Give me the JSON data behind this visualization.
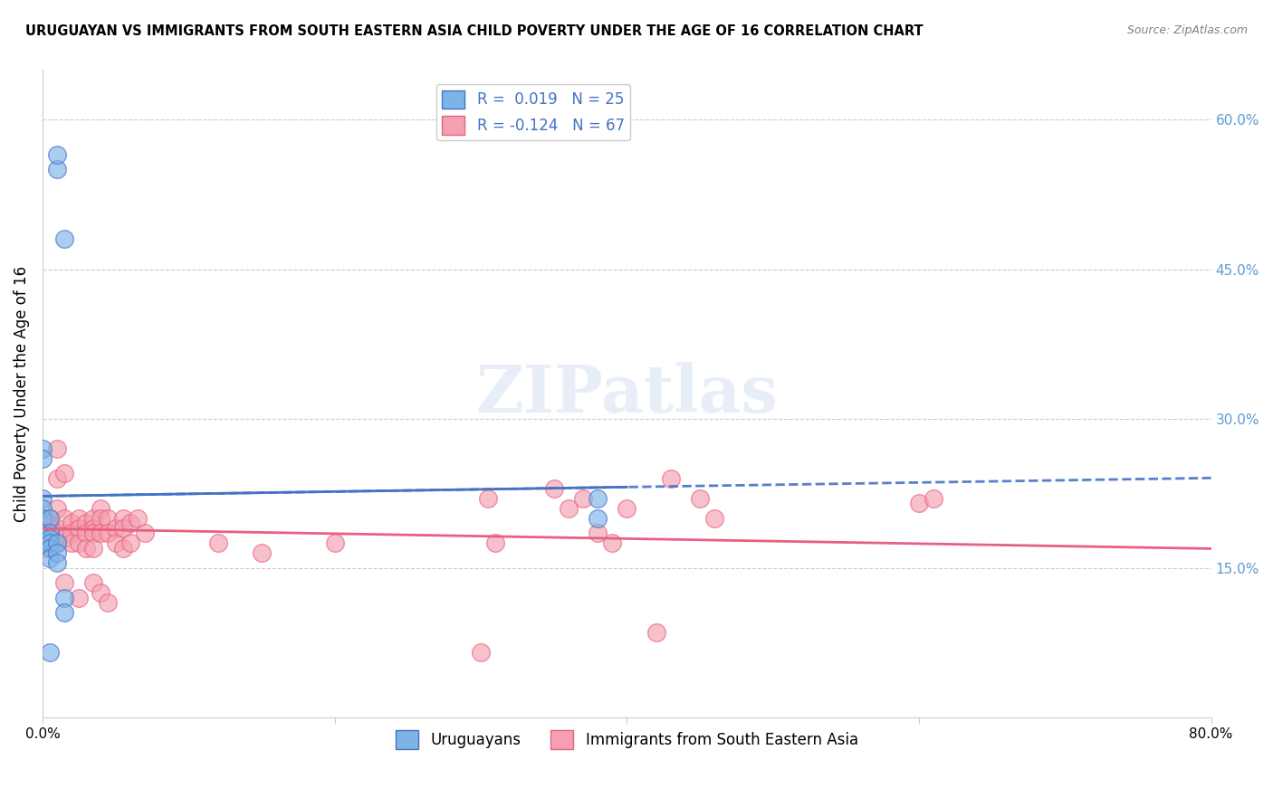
{
  "title": "URUGUAYAN VS IMMIGRANTS FROM SOUTH EASTERN ASIA CHILD POVERTY UNDER THE AGE OF 16 CORRELATION CHART",
  "source": "Source: ZipAtlas.com",
  "xlabel": "",
  "ylabel": "Child Poverty Under the Age of 16",
  "xlim": [
    0,
    0.8
  ],
  "ylim": [
    0,
    0.65
  ],
  "yticks": [
    0.15,
    0.3,
    0.45,
    0.6
  ],
  "ytick_labels": [
    "15.0%",
    "30.0%",
    "45.0%",
    "60.0%"
  ],
  "xticks": [
    0.0,
    0.2,
    0.4,
    0.6,
    0.8
  ],
  "xtick_labels": [
    "0.0%",
    "",
    "",
    "",
    "80.0%"
  ],
  "blue_R": 0.019,
  "blue_N": 25,
  "pink_R": -0.124,
  "pink_N": 67,
  "blue_color": "#7EB3E8",
  "pink_color": "#F4A0B0",
  "blue_line_color": "#4472C4",
  "pink_line_color": "#E86080",
  "watermark": "ZIPatlas",
  "legend_label_blue": "Uruguayans",
  "legend_label_pink": "Immigrants from South Eastern Asia",
  "blue_scatter_x": [
    0.01,
    0.01,
    0.015,
    0.0,
    0.0,
    0.0,
    0.0,
    0.0,
    0.0,
    0.0,
    0.0,
    0.005,
    0.005,
    0.005,
    0.005,
    0.005,
    0.005,
    0.01,
    0.01,
    0.01,
    0.015,
    0.015,
    0.38,
    0.38,
    0.005
  ],
  "blue_scatter_y": [
    0.55,
    0.565,
    0.48,
    0.27,
    0.26,
    0.22,
    0.21,
    0.2,
    0.185,
    0.18,
    0.175,
    0.2,
    0.185,
    0.18,
    0.175,
    0.17,
    0.16,
    0.175,
    0.165,
    0.155,
    0.12,
    0.105,
    0.22,
    0.2,
    0.065
  ],
  "pink_scatter_x": [
    0.0,
    0.0,
    0.0,
    0.0,
    0.0,
    0.005,
    0.005,
    0.005,
    0.005,
    0.01,
    0.01,
    0.01,
    0.01,
    0.01,
    0.015,
    0.015,
    0.015,
    0.02,
    0.02,
    0.02,
    0.025,
    0.025,
    0.025,
    0.03,
    0.03,
    0.03,
    0.035,
    0.035,
    0.035,
    0.035,
    0.04,
    0.04,
    0.04,
    0.045,
    0.045,
    0.05,
    0.05,
    0.055,
    0.055,
    0.055,
    0.06,
    0.06,
    0.065,
    0.07,
    0.3,
    0.305,
    0.31,
    0.35,
    0.36,
    0.37,
    0.38,
    0.39,
    0.4,
    0.42,
    0.43,
    0.45,
    0.46,
    0.6,
    0.61,
    0.015,
    0.025,
    0.035,
    0.04,
    0.045,
    0.12,
    0.15,
    0.2
  ],
  "pink_scatter_y": [
    0.2,
    0.195,
    0.185,
    0.18,
    0.17,
    0.2,
    0.195,
    0.185,
    0.175,
    0.27,
    0.24,
    0.21,
    0.19,
    0.175,
    0.245,
    0.2,
    0.18,
    0.195,
    0.185,
    0.175,
    0.2,
    0.19,
    0.175,
    0.195,
    0.185,
    0.17,
    0.2,
    0.19,
    0.185,
    0.17,
    0.21,
    0.2,
    0.185,
    0.2,
    0.185,
    0.19,
    0.175,
    0.2,
    0.19,
    0.17,
    0.195,
    0.175,
    0.2,
    0.185,
    0.065,
    0.22,
    0.175,
    0.23,
    0.21,
    0.22,
    0.185,
    0.175,
    0.21,
    0.085,
    0.24,
    0.22,
    0.2,
    0.215,
    0.22,
    0.135,
    0.12,
    0.135,
    0.125,
    0.115,
    0.175,
    0.165,
    0.175
  ]
}
